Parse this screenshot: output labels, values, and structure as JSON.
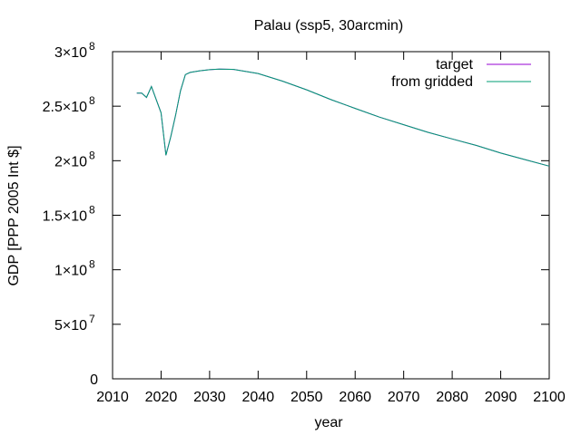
{
  "chart_data": {
    "type": "line",
    "title": "Palau (ssp5, 30arcmin)",
    "xlabel": "year",
    "ylabel": "GDP [PPP 2005 Int $]",
    "xlim": [
      2010,
      2100
    ],
    "ylim": [
      0,
      300000000
    ],
    "x_ticks": [
      2010,
      2020,
      2030,
      2040,
      2050,
      2060,
      2070,
      2080,
      2090,
      2100
    ],
    "y_ticks": [
      {
        "value": 0,
        "mantissa": "0",
        "exp": ""
      },
      {
        "value": 50000000,
        "mantissa": "5×10",
        "exp": "7"
      },
      {
        "value": 100000000,
        "mantissa": "1×10",
        "exp": "8"
      },
      {
        "value": 150000000,
        "mantissa": "1.5×10",
        "exp": "8"
      },
      {
        "value": 200000000,
        "mantissa": "2×10",
        "exp": "8"
      },
      {
        "value": 250000000,
        "mantissa": "2.5×10",
        "exp": "8"
      },
      {
        "value": 300000000,
        "mantissa": "3×10",
        "exp": "8"
      }
    ],
    "legend_position": "top-right",
    "series": [
      {
        "name": "target",
        "color": "#9400d3",
        "x": [
          2015,
          2016,
          2017,
          2018,
          2019,
          2020,
          2021,
          2022,
          2023,
          2024,
          2025,
          2026,
          2028,
          2030,
          2032,
          2035,
          2040,
          2045,
          2050,
          2055,
          2060,
          2065,
          2070,
          2075,
          2080,
          2085,
          2090,
          2095,
          2100
        ],
        "y": [
          262000000,
          262000000,
          258000000,
          268000000,
          256000000,
          244000000,
          205000000,
          222000000,
          242000000,
          264000000,
          279000000,
          281000000,
          282500000,
          283500000,
          284000000,
          283700000,
          280000000,
          273000000,
          265000000,
          256000000,
          248000000,
          240000000,
          233000000,
          226000000,
          220000000,
          214000000,
          207000000,
          201000000,
          195000000
        ]
      },
      {
        "name": "from gridded",
        "color": "#009e73",
        "x": [
          2015,
          2016,
          2017,
          2018,
          2019,
          2020,
          2021,
          2022,
          2023,
          2024,
          2025,
          2026,
          2028,
          2030,
          2032,
          2035,
          2040,
          2045,
          2050,
          2055,
          2060,
          2065,
          2070,
          2075,
          2080,
          2085,
          2090,
          2095,
          2100
        ],
        "y": [
          262000000,
          262000000,
          258000000,
          268000000,
          256000000,
          244000000,
          205000000,
          222000000,
          242000000,
          264000000,
          279000000,
          281000000,
          282500000,
          283500000,
          284000000,
          283700000,
          280000000,
          273000000,
          265000000,
          256000000,
          248000000,
          240000000,
          233000000,
          226000000,
          220000000,
          214000000,
          207000000,
          201000000,
          195000000
        ]
      }
    ]
  }
}
